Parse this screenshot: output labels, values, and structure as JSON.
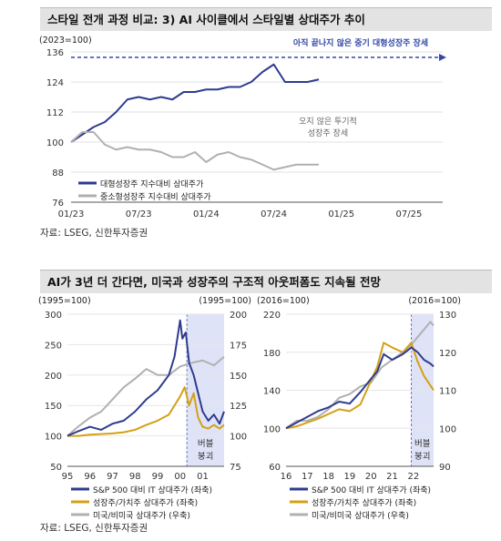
{
  "colors": {
    "navy": "#2e3b8f",
    "gray": "#b0b0b0",
    "gold": "#d4a017",
    "shade": "#dfe3f7",
    "arrow": "#3549a8"
  },
  "top": {
    "title": "스타일 전개 과정 비교: 3) AI 사이클에서 스타일별 상대주가 추이",
    "source": "자료: LSEG, 신한투자증권",
    "chart_data": {
      "type": "line",
      "unit_label": "(2023=100)",
      "ylim": [
        76,
        136
      ],
      "yticks": [
        "76",
        "88",
        "100",
        "112",
        "124",
        "136"
      ],
      "xticks": [
        "01/23",
        "07/23",
        "01/24",
        "07/24",
        "01/25",
        "07/25"
      ],
      "xlim": [
        "2023-01",
        "2025-10"
      ],
      "annotations": {
        "arrow": "아직 끝나지 않은 중기 대형성장주 장세",
        "gray_line1": "오지 않은 투기적",
        "gray_line2": "성장주 장세"
      },
      "series": [
        {
          "name": "대형성장주 지수대비 상대주가",
          "x": [
            "2023-01",
            "2023-02",
            "2023-03",
            "2023-04",
            "2023-05",
            "2023-06",
            "2023-07",
            "2023-08",
            "2023-09",
            "2023-10",
            "2023-11",
            "2023-12",
            "2024-01",
            "2024-02",
            "2024-03",
            "2024-04",
            "2024-05",
            "2024-06",
            "2024-07",
            "2024-08",
            "2024-09",
            "2024-10",
            "2024-11"
          ],
          "values": [
            100,
            103,
            106,
            108,
            112,
            117,
            118,
            117,
            118,
            117,
            120,
            120,
            121,
            121,
            122,
            122,
            124,
            128,
            131,
            124,
            124,
            124,
            125
          ]
        },
        {
          "name": "중소형성장주 지수대비 상대주가",
          "x": [
            "2023-01",
            "2023-02",
            "2023-03",
            "2023-04",
            "2023-05",
            "2023-06",
            "2023-07",
            "2023-08",
            "2023-09",
            "2023-10",
            "2023-11",
            "2023-12",
            "2024-01",
            "2024-02",
            "2024-03",
            "2024-04",
            "2024-05",
            "2024-06",
            "2024-07",
            "2024-08",
            "2024-09",
            "2024-10",
            "2024-11"
          ],
          "values": [
            100,
            104,
            104,
            99,
            97,
            98,
            97,
            97,
            96,
            94,
            94,
            96,
            92,
            95,
            96,
            94,
            93,
            91,
            89,
            90,
            91,
            91,
            91
          ]
        }
      ]
    }
  },
  "bottom": {
    "title": "AI가 3년 더 간다면, 미국과 성장주의 구조적 아웃퍼폼도 지속될 전망",
    "source": "자료: LSEG, 신한투자증권",
    "chart_data": [
      {
        "type": "line",
        "left_unit": "(1995=100)",
        "right_unit": "(1995=100)",
        "left_ylim": [
          50,
          300
        ],
        "right_ylim": [
          75,
          200
        ],
        "left_yticks": [
          "50",
          "100",
          "150",
          "200",
          "250",
          "300"
        ],
        "right_yticks": [
          "75",
          "100",
          "125",
          "150",
          "175",
          "200"
        ],
        "xticks": [
          "95",
          "96",
          "97",
          "98",
          "99",
          "00",
          "01"
        ],
        "xlim": [
          1995,
          2001.95
        ],
        "shade": [
          2000.3,
          2001.95
        ],
        "shade_label1": "버블",
        "shade_label2": "붕괴",
        "series": [
          {
            "name": "S&P 500 대비 IT 상대주가 (좌축)",
            "axis": "left",
            "x": [
              1995,
              1995.5,
              1996,
              1996.5,
              1997,
              1997.5,
              1998,
              1998.5,
              1999,
              1999.5,
              1999.75,
              2000,
              2000.1,
              2000.25,
              2000.4,
              2000.6,
              2000.8,
              2001,
              2001.25,
              2001.5,
              2001.75,
              2001.95
            ],
            "values": [
              100,
              108,
              115,
              110,
              120,
              125,
              140,
              160,
              175,
              200,
              230,
              290,
              260,
              270,
              220,
              200,
              170,
              140,
              125,
              135,
              120,
              140
            ]
          },
          {
            "name": "성장주/가치주 상대주가 (좌축)",
            "axis": "left",
            "x": [
              1995,
              1995.5,
              1996,
              1996.5,
              1997,
              1997.5,
              1998,
              1998.5,
              1999,
              1999.5,
              2000,
              2000.2,
              2000.4,
              2000.6,
              2000.8,
              2001,
              2001.25,
              2001.5,
              2001.75,
              2001.95
            ],
            "values": [
              100,
              100,
              102,
              103,
              104,
              106,
              110,
              118,
              125,
              135,
              165,
              180,
              150,
              170,
              130,
              115,
              112,
              118,
              112,
              118
            ]
          },
          {
            "name": "미국/비미국 상대주가 (우축)",
            "axis": "right",
            "x": [
              1995,
              1995.5,
              1996,
              1996.5,
              1997,
              1997.5,
              1998,
              1998.5,
              1999,
              1999.5,
              2000,
              2000.5,
              2001,
              2001.5,
              2001.95
            ],
            "values": [
              100,
              108,
              115,
              120,
              130,
              140,
              147,
              155,
              150,
              150,
              157,
              160,
              162,
              158,
              165
            ]
          }
        ]
      },
      {
        "type": "line",
        "left_unit": "(2016=100)",
        "right_unit": "(2016=100)",
        "left_ylim": [
          60,
          220
        ],
        "right_ylim": [
          90,
          130
        ],
        "left_yticks": [
          "60",
          "100",
          "140",
          "180",
          "220"
        ],
        "right_yticks": [
          "90",
          "100",
          "110",
          "120",
          "130"
        ],
        "xticks": [
          "16",
          "17",
          "18",
          "19",
          "20",
          "21",
          "22"
        ],
        "xlim": [
          2016,
          2022.95
        ],
        "shade": [
          2021.9,
          2022.95
        ],
        "shade_label1": "버블",
        "shade_label2": "붕괴",
        "series": [
          {
            "name": "S&P 500 대비 IT 상대주가 (좌축)",
            "axis": "left",
            "x": [
              2016,
              2016.5,
              2017,
              2017.5,
              2018,
              2018.5,
              2019,
              2019.5,
              2020,
              2020.3,
              2020.6,
              2021,
              2021.5,
              2021.9,
              2022.2,
              2022.5,
              2022.8,
              2022.95
            ],
            "values": [
              100,
              106,
              112,
              118,
              122,
              128,
              126,
              138,
              152,
              160,
              178,
              172,
              178,
              185,
              180,
              172,
              168,
              165
            ]
          },
          {
            "name": "성장주/가치주 상대주가 (좌축)",
            "axis": "left",
            "x": [
              2016,
              2016.5,
              2017,
              2017.5,
              2018,
              2018.5,
              2019,
              2019.5,
              2020,
              2020.3,
              2020.6,
              2021,
              2021.5,
              2021.9,
              2022.2,
              2022.5,
              2022.8,
              2022.95
            ],
            "values": [
              100,
              102,
              106,
              110,
              115,
              120,
              118,
              125,
              150,
              165,
              190,
              185,
              180,
              190,
              170,
              155,
              145,
              140
            ]
          },
          {
            "name": "미국/비미국 상대주가 (우축)",
            "axis": "right",
            "x": [
              2016,
              2016.5,
              2017,
              2017.5,
              2018,
              2018.5,
              2019,
              2019.5,
              2020,
              2020.5,
              2021,
              2021.5,
              2021.9,
              2022.2,
              2022.5,
              2022.8,
              2022.95
            ],
            "values": [
              100,
              102,
              102,
              103,
              105,
              108,
              109,
              111,
              112,
              116,
              118,
              120,
              122,
              124,
              126,
              128,
              127
            ]
          }
        ]
      }
    ]
  }
}
